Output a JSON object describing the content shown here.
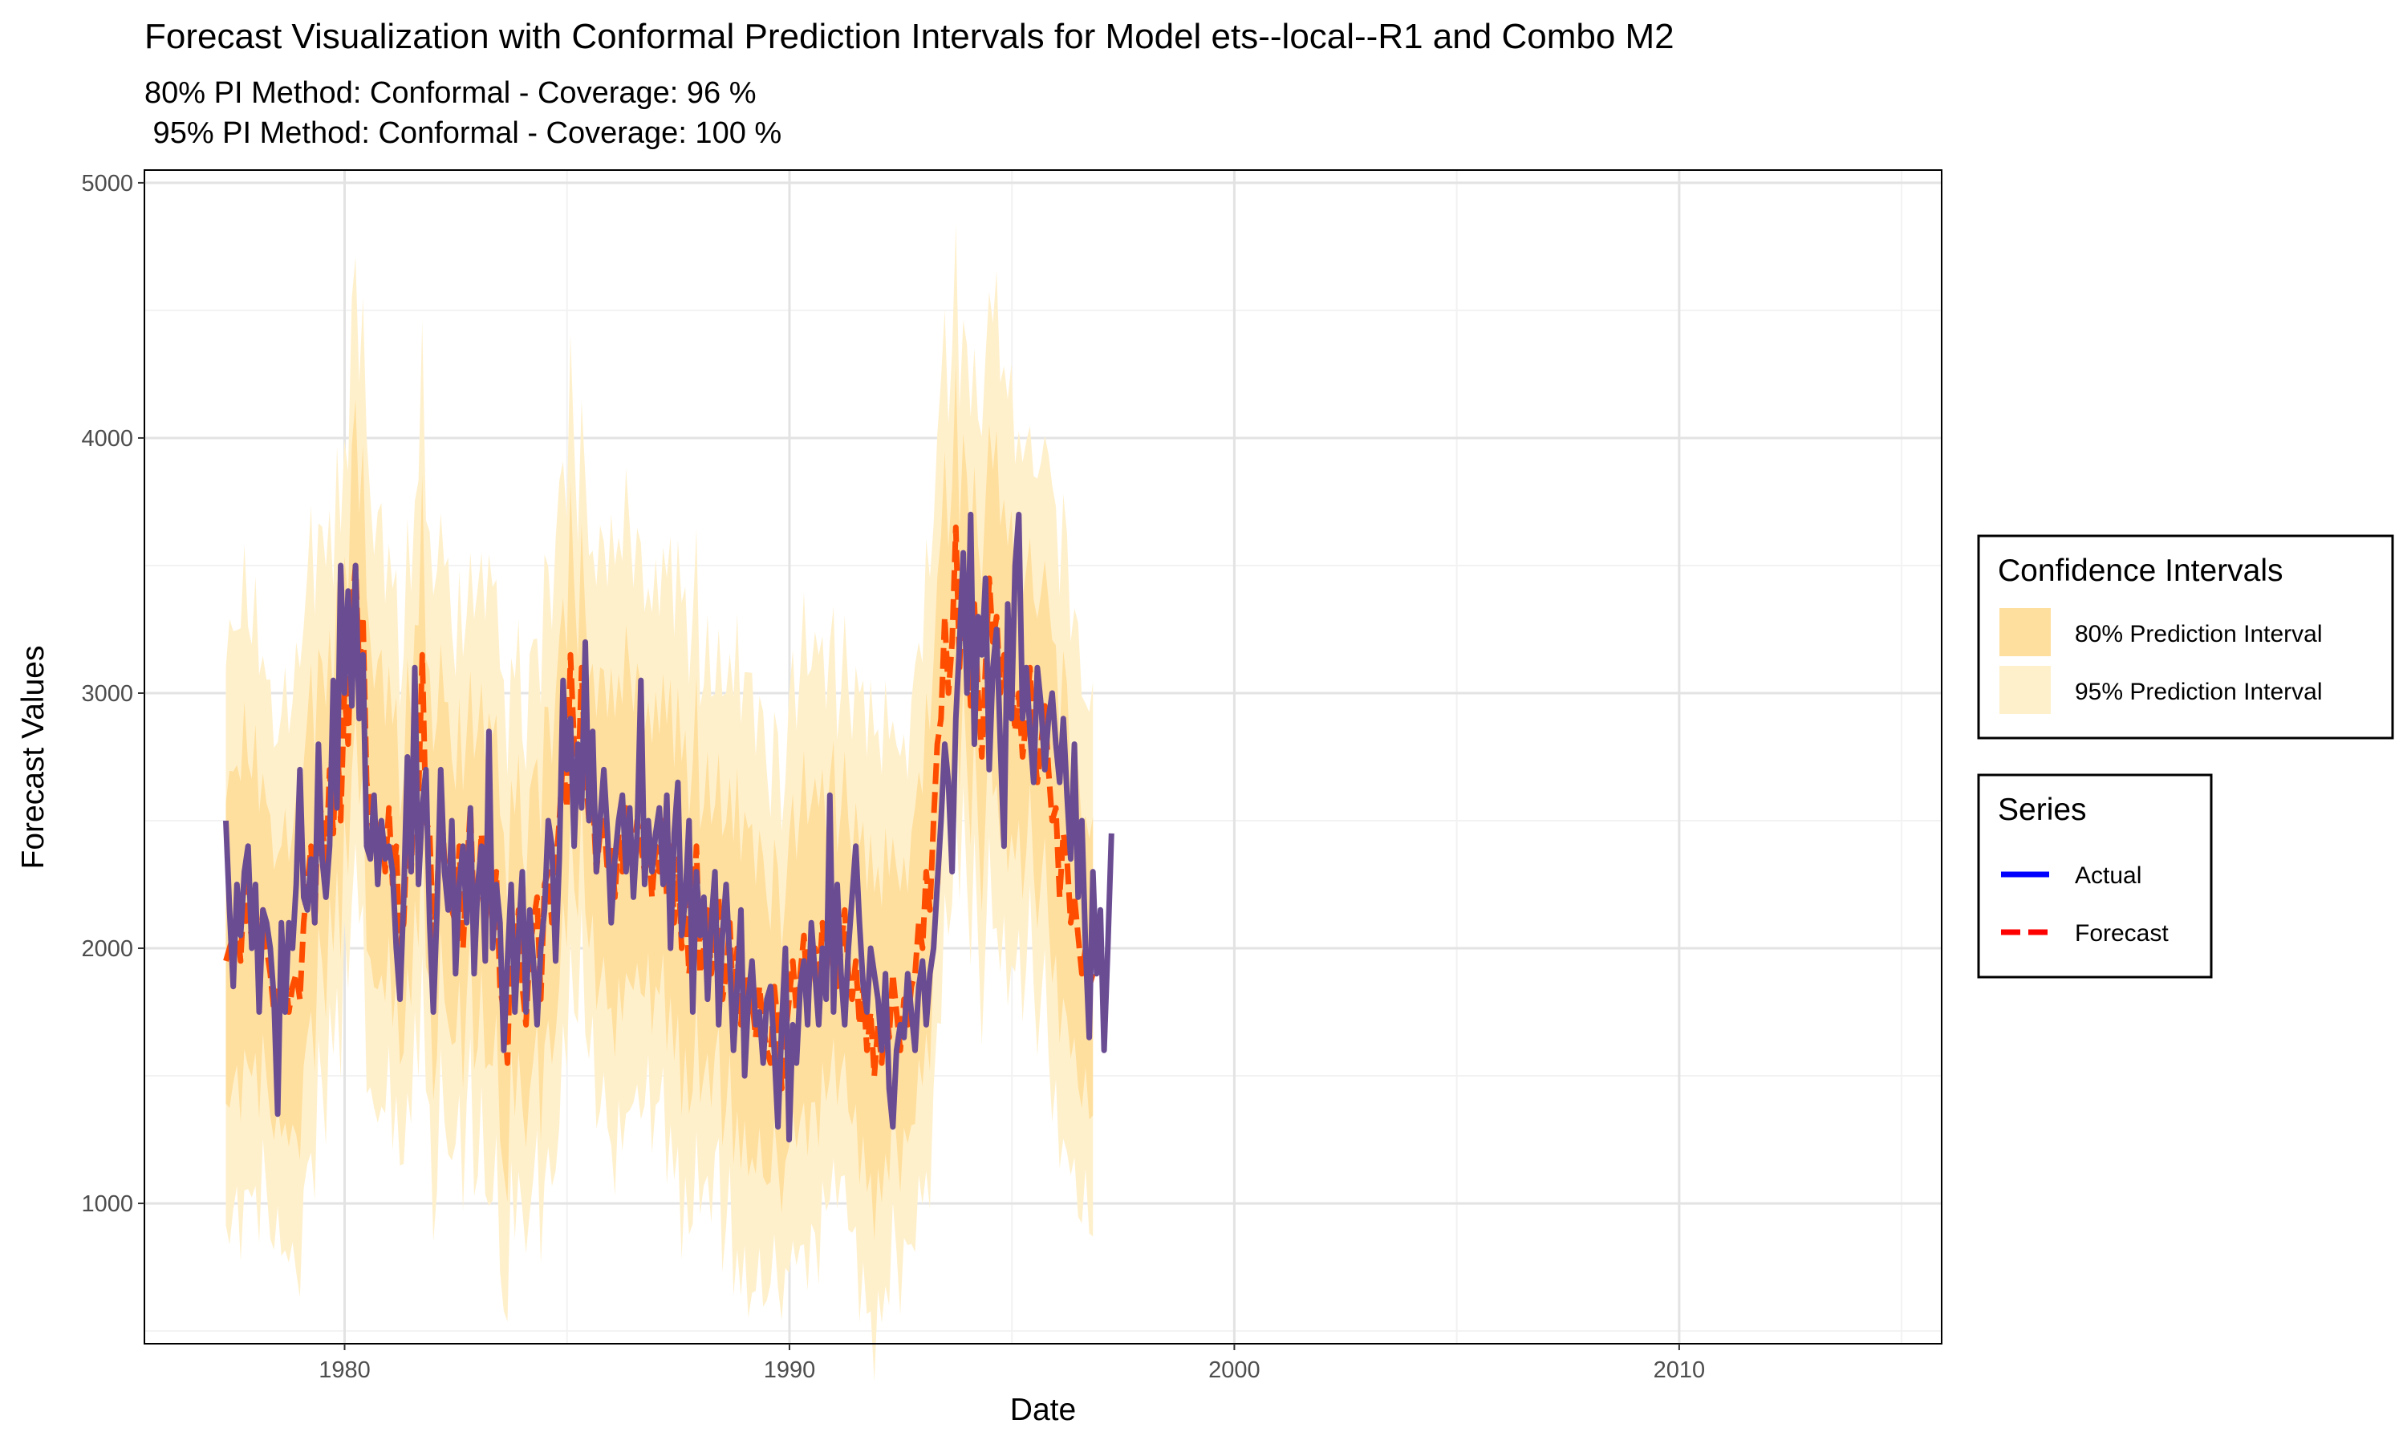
{
  "chart_data": {
    "type": "line",
    "title": "Forecast Visualization with Conformal Prediction Intervals for Model ets--local--R1 and Combo M2",
    "subtitle_line1": "80% PI Method: Conformal - Coverage: 96 %",
    "subtitle_line2": " 95% PI Method: Conformal - Coverage: 100 %",
    "xlabel": "Date",
    "ylabel": "Forecast Values",
    "x_range": [
      1975.5,
      2015.9
    ],
    "y_range": [
      450,
      5050
    ],
    "x_ticks": [
      1980,
      1990,
      2000,
      2010
    ],
    "x_tick_labels": [
      "1980",
      "1990",
      "2000",
      "2010"
    ],
    "y_ticks": [
      1000,
      2000,
      3000,
      4000,
      5000
    ],
    "y_tick_labels": [
      "1000",
      "2000",
      "3000",
      "4000",
      "5000"
    ],
    "grid": true,
    "x_start": 1977.33,
    "step_years": 0.0833,
    "actual_values": [
      2500,
      2150,
      1850,
      2250,
      2050,
      2300,
      2400,
      2000,
      2250,
      1750,
      2150,
      2100,
      2000,
      1800,
      1350,
      2100,
      1750,
      2100,
      2000,
      2250,
      2700,
      2200,
      2150,
      2350,
      2100,
      2800,
      2350,
      2200,
      2400,
      3050,
      2550,
      3500,
      3000,
      3400,
      2950,
      3500,
      2900,
      3150,
      2400,
      2350,
      2600,
      2250,
      2500,
      2350,
      2400,
      2300,
      2000,
      1800,
      2200,
      2750,
      2300,
      3100,
      2250,
      2550,
      2700,
      2100,
      1750,
      2150,
      2700,
      2300,
      2150,
      2500,
      1900,
      2250,
      2400,
      2100,
      2550,
      1900,
      2250,
      2400,
      1950,
      2850,
      2000,
      2250,
      2100,
      1600,
      1950,
      2250,
      1750,
      2050,
      2300,
      1750,
      2150,
      1950,
      1700,
      2000,
      2150,
      2500,
      2400,
      1950,
      2350,
      3050,
      2700,
      2900,
      2400,
      2800,
      2550,
      3200,
      2500,
      2850,
      2300,
      2500,
      2700,
      2450,
      2100,
      2350,
      2500,
      2600,
      2300,
      2550,
      2200,
      2450,
      3050,
      2250,
      2500,
      2300,
      2450,
      2550,
      2250,
      2600,
      2000,
      2450,
      2650,
      2050,
      2200,
      2500,
      1750,
      2300,
      2050,
      2200,
      1800,
      2100,
      2300,
      1700,
      2050,
      2250,
      1950,
      1600,
      1850,
      2150,
      1500,
      1800,
      1950,
      1700,
      1750,
      1550,
      1800,
      1850,
      1600,
      1300,
      1700,
      2000,
      1250,
      1700,
      1550,
      1850,
      1950,
      1700,
      2100,
      1900,
      1700,
      2000,
      1800,
      2600,
      1750,
      2250,
      1900,
      1700,
      2000,
      2200,
      2400,
      2100,
      1850,
      1750,
      2000,
      1900,
      1800,
      1600,
      1900,
      1450,
      1300,
      1600,
      1700,
      1650,
      1900,
      1750,
      1600,
      1850,
      1950,
      1700,
      1900,
      2000,
      2250,
      2500,
      2800,
      2650,
      2300,
      2900,
      3200,
      3550,
      3000,
      3700,
      2800,
      3300,
      3150,
      3450,
      2700,
      3100,
      3250,
      2800,
      2400,
      3350,
      2900,
      3500,
      3700,
      2900,
      3100,
      2850,
      2650,
      3100,
      2950,
      2700,
      2900,
      3000,
      2800,
      2650,
      2900,
      2600,
      2350,
      2800,
      2200,
      2500,
      2000,
      1650,
      2300,
      1900,
      2150,
      1600,
      2000,
      2450
    ],
    "forecast_values": [
      1950,
      2000,
      2050,
      2100,
      1950,
      2250,
      2100,
      2050,
      2200,
      1900,
      2150,
      2000,
      1900,
      1750,
      1850,
      1800,
      1900,
      1750,
      1850,
      1900,
      1800,
      2100,
      2250,
      2400,
      2100,
      2600,
      2500,
      2300,
      2700,
      2450,
      2850,
      2500,
      3000,
      2800,
      3300,
      3500,
      3100,
      3300,
      2650,
      2550,
      2400,
      2450,
      2500,
      2300,
      2550,
      2250,
      2400,
      2000,
      2100,
      2500,
      2300,
      2700,
      2600,
      3150,
      2500,
      2450,
      2050,
      2200,
      2600,
      2350,
      2300,
      2150,
      2100,
      2400,
      2000,
      2300,
      2550,
      2100,
      2200,
      2450,
      2100,
      2200,
      2150,
      2300,
      1850,
      1750,
      1550,
      2100,
      1900,
      2150,
      1850,
      1700,
      2000,
      2100,
      2200,
      1800,
      2250,
      2300,
      2100,
      2300,
      2500,
      2750,
      2550,
      3150,
      2800,
      2600,
      3100,
      2700,
      2500,
      2600,
      2300,
      2450,
      2500,
      2300,
      2400,
      2200,
      2450,
      2300,
      2550,
      2450,
      2350,
      2500,
      2400,
      2300,
      2450,
      2200,
      2400,
      2300,
      2500,
      2200,
      2400,
      2100,
      2350,
      2000,
      2200,
      1900,
      2050,
      2400,
      1900,
      2000,
      2150,
      1900,
      2050,
      2200,
      1800,
      1900,
      2100,
      1750,
      2000,
      1700,
      1900,
      1750,
      1800,
      1650,
      1850,
      1700,
      1600,
      1550,
      1850,
      1700,
      1450,
      1650,
      1800,
      1950,
      1750,
      1900,
      2050,
      1800,
      1950,
      2000,
      1850,
      2100,
      1900,
      2050,
      2200,
      1850,
      2000,
      2150,
      1900,
      1800,
      1950,
      1700,
      1850,
      1600,
      1750,
      1500,
      1700,
      1550,
      1800,
      1650,
      1900,
      1750,
      1600,
      1800,
      1700,
      1850,
      1900,
      2100,
      2000,
      2300,
      2150,
      2500,
      2800,
      2900,
      3300,
      3000,
      3200,
      3650,
      3100,
      3500,
      3250,
      2950,
      3350,
      3000,
      2750,
      3100,
      3450,
      3200,
      3300,
      3000,
      3150,
      2900,
      3050,
      2850,
      3000,
      2750,
      2900,
      3100,
      2800,
      2650,
      2800,
      2950,
      2700,
      2500,
      2550,
      2200,
      2450,
      2350,
      2100,
      2200,
      2050,
      1900,
      2000,
      1850,
      1900
    ],
    "series": [
      {
        "name": "Actual",
        "color": "#0000ff"
      },
      {
        "name": "Forecast",
        "color": "#ff0000"
      },
      {
        "name": "80% Prediction Interval",
        "color": "#ffdf9e"
      },
      {
        "name": "95% Prediction Interval",
        "color": "#fff0cc"
      }
    ],
    "overlap_color": "#6a4c93",
    "forecast_draw_color": "#ff4d00",
    "legend_placement": "right",
    "legend_ci_title": "Confidence Intervals",
    "legend_series_title": "Series"
  }
}
